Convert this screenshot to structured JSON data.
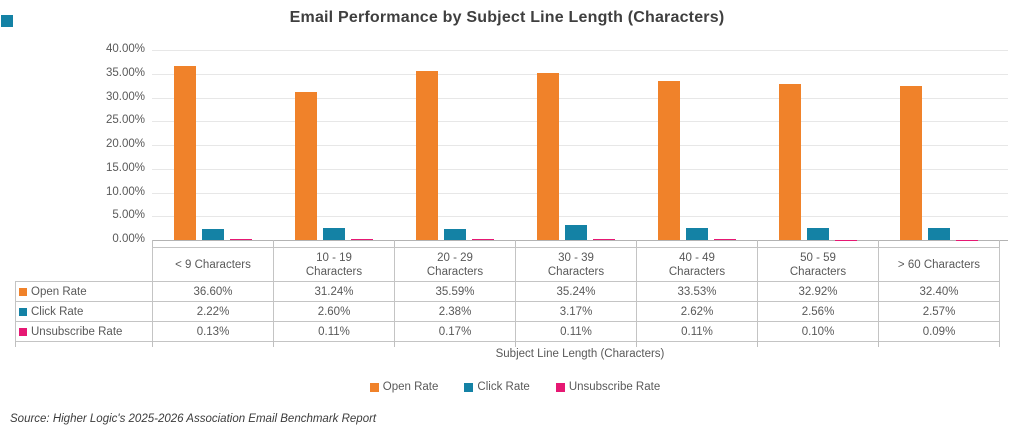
{
  "source": "Source: Higher Logic's 2025-2026 Association Email Benchmark Report",
  "colors": {
    "open_rate": "#f0822a",
    "click_rate": "#1482a5",
    "unsubscribe_rate": "#e61873",
    "grid": "#e7e7e7",
    "table_border": "#c4c4c4",
    "text": "#595959"
  },
  "chart_data": {
    "type": "bar",
    "title": "Email Performance by Subject Line Length (Characters)",
    "xlabel": "Subject Line Length (Characters)",
    "ylabel": "",
    "ylim": [
      0,
      40
    ],
    "ytick_step": 5,
    "grid": true,
    "legend_position": "bottom",
    "y_tick_labels": [
      "0.00%",
      "5.00%",
      "10.00%",
      "15.00%",
      "20.00%",
      "25.00%",
      "30.00%",
      "35.00%",
      "40.00%"
    ],
    "categories": [
      "< 9 Characters",
      "10 - 19\nCharacters",
      "20 - 29\nCharacters",
      "30 - 39\nCharacters",
      "40 - 49\nCharacters",
      "50 - 59\nCharacters",
      "> 60 Characters"
    ],
    "series": [
      {
        "name": "Open Rate",
        "color": "#f0822a",
        "values": [
          36.6,
          31.24,
          35.59,
          35.24,
          33.53,
          32.92,
          32.4
        ],
        "display_values": [
          "36.60%",
          "31.24%",
          "35.59%",
          "35.24%",
          "33.53%",
          "32.92%",
          "32.40%"
        ]
      },
      {
        "name": "Click Rate",
        "color": "#1482a5",
        "values": [
          2.22,
          2.6,
          2.38,
          3.17,
          2.62,
          2.56,
          2.57
        ],
        "display_values": [
          "2.22%",
          "2.60%",
          "2.38%",
          "3.17%",
          "2.62%",
          "2.56%",
          "2.57%"
        ]
      },
      {
        "name": "Unsubscribe Rate",
        "color": "#e61873",
        "values": [
          0.13,
          0.11,
          0.17,
          0.11,
          0.11,
          0.1,
          0.09
        ],
        "display_values": [
          "0.13%",
          "0.11%",
          "0.17%",
          "0.11%",
          "0.11%",
          "0.10%",
          "0.09%"
        ]
      }
    ]
  }
}
